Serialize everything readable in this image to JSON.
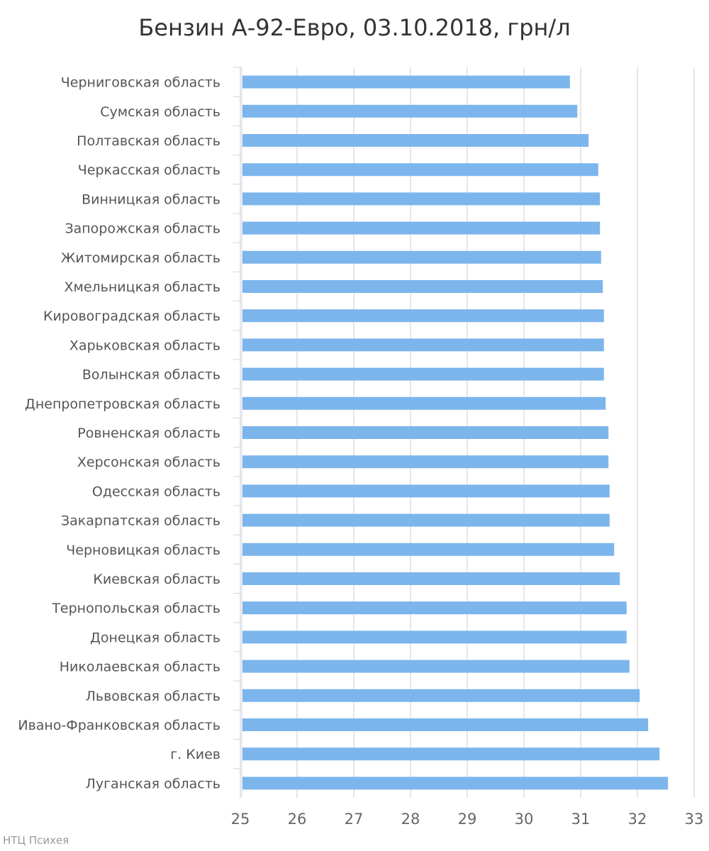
{
  "chart_data": {
    "type": "bar",
    "orientation": "horizontal",
    "title": "Бензин А-92-Евро, 03.10.2018, грн/л",
    "credit": "НТЦ Психея",
    "xlabel": "",
    "ylabel": "",
    "xlim": [
      25,
      33
    ],
    "ticks": [
      "25",
      "26",
      "27",
      "28",
      "29",
      "30",
      "31",
      "32",
      "33"
    ],
    "grid": true,
    "color": "#7cb5ec",
    "categories": [
      "Черниговская область",
      "Сумская область",
      "Полтавская область",
      "Черкасская область",
      "Винницкая область",
      "Запорожская область",
      "Житомирская область",
      "Хмельницкая область",
      "Кировоградская область",
      "Харьковская область",
      "Волынская область",
      "Днепропетровская область",
      "Ровненская область",
      "Херсонская область",
      "Одесская область",
      "Закарпатская область",
      "Черновицкая область",
      "Киевская область",
      "Тернопольская область",
      "Донецкая область",
      "Николаевская область",
      "Львовская область",
      "Ивано-Франковская область",
      "г. Киев",
      "Луганская область"
    ],
    "values": [
      30.81,
      30.94,
      31.14,
      31.31,
      31.34,
      31.34,
      31.36,
      31.39,
      31.41,
      31.41,
      31.41,
      31.44,
      31.49,
      31.49,
      31.51,
      31.51,
      31.59,
      31.69,
      31.81,
      31.81,
      31.86,
      32.04,
      32.19,
      32.39,
      32.54
    ]
  }
}
